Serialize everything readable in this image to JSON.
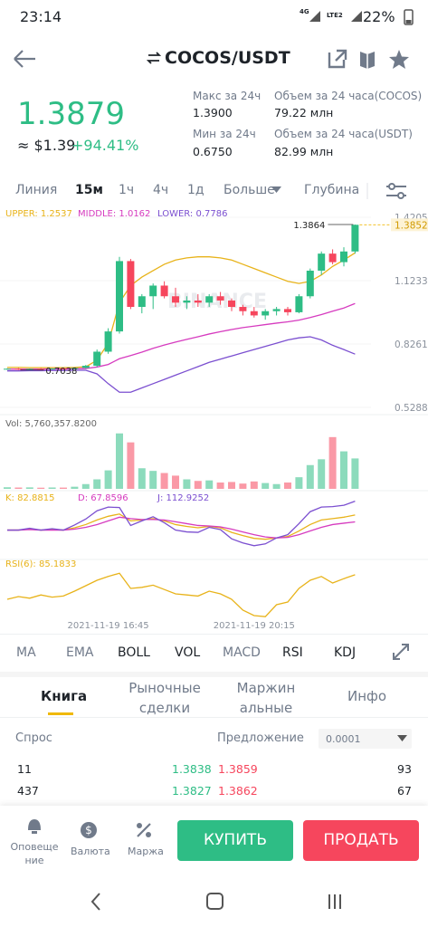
{
  "status": {
    "time": "23:14",
    "network": [
      "4G",
      "LTE2"
    ],
    "battery": "22%"
  },
  "header": {
    "pair": "COCOS/USDT"
  },
  "ticker": {
    "price": "1.3879",
    "usd": "≈ $1.39",
    "change": "+94.41%"
  },
  "stats": [
    {
      "label": "Макс за 24ч",
      "value": "1.3900"
    },
    {
      "label": "Объем за 24 часа(COCOS)",
      "value": "79.22 млн"
    },
    {
      "label": "Мин за 24ч",
      "value": "0.6750"
    },
    {
      "label": "Объем за 24 часа(USDT)",
      "value": "82.99 млн"
    }
  ],
  "intervals": [
    "Линия",
    "15м",
    "1ч",
    "4ч",
    "1д",
    "Больше",
    "Глубина"
  ],
  "watermark": "BINANCE",
  "chart_data": [
    {
      "type": "candlestick",
      "categories": [
        null,
        null,
        null,
        null,
        null,
        null,
        null,
        null,
        null,
        "2021-11-19 16:45",
        null,
        null,
        null,
        null,
        null,
        null,
        null,
        null,
        null,
        null,
        null,
        null,
        "2021-11-19 20:15",
        null,
        null,
        null,
        null,
        null,
        null,
        null,
        null,
        null
      ],
      "candles": {
        "open": [
          0.708,
          0.71,
          0.707,
          0.709,
          0.708,
          0.711,
          0.709,
          0.714,
          0.724,
          0.79,
          0.885,
          1.215,
          1.0,
          1.05,
          1.1,
          1.05,
          1.02,
          1.03,
          1.02,
          1.05,
          1.03,
          1.0,
          0.98,
          0.96,
          0.98,
          0.99,
          0.975,
          1.05,
          1.17,
          1.25,
          1.21,
          1.26
        ],
        "high": [
          0.712,
          0.713,
          0.711,
          0.713,
          0.712,
          0.714,
          0.716,
          0.728,
          0.8,
          0.9,
          1.235,
          1.225,
          1.06,
          1.11,
          1.12,
          1.09,
          1.05,
          1.06,
          1.06,
          1.07,
          1.04,
          1.01,
          1.0,
          0.99,
          1.0,
          1.0,
          1.06,
          1.18,
          1.26,
          1.27,
          1.28,
          1.3864
        ],
        "low": [
          0.705,
          0.7038,
          0.705,
          0.706,
          0.706,
          0.707,
          0.707,
          0.71,
          0.718,
          0.78,
          0.875,
          0.99,
          0.97,
          0.99,
          1.04,
          1.0,
          0.99,
          1.0,
          1.0,
          1.01,
          0.98,
          0.96,
          0.95,
          0.94,
          0.96,
          0.96,
          0.97,
          1.04,
          1.15,
          1.2,
          1.19,
          1.25
        ],
        "close": [
          0.71,
          0.707,
          0.709,
          0.708,
          0.711,
          0.709,
          0.714,
          0.724,
          0.79,
          0.885,
          1.215,
          1.0,
          1.05,
          1.1,
          1.05,
          1.02,
          1.03,
          1.02,
          1.05,
          1.03,
          1.0,
          0.98,
          0.96,
          0.98,
          0.99,
          0.975,
          1.05,
          1.17,
          1.25,
          1.21,
          1.26,
          1.3852
        ]
      },
      "up_color": "#2ebd85",
      "down_color": "#f6465d",
      "series": [
        {
          "name": "UPPER: 1.2537",
          "color": "#e8b31a",
          "values": [
            0.716,
            0.716,
            0.715,
            0.715,
            0.715,
            0.715,
            0.716,
            0.719,
            0.75,
            0.83,
            1.02,
            1.1,
            1.14,
            1.17,
            1.2,
            1.22,
            1.23,
            1.235,
            1.235,
            1.23,
            1.22,
            1.2,
            1.18,
            1.16,
            1.14,
            1.12,
            1.11,
            1.12,
            1.15,
            1.19,
            1.22,
            1.2537
          ]
        },
        {
          "name": "MIDDLE: 1.0162",
          "color": "#d63bbf",
          "values": [
            0.708,
            0.708,
            0.708,
            0.708,
            0.709,
            0.709,
            0.71,
            0.711,
            0.718,
            0.73,
            0.757,
            0.772,
            0.788,
            0.806,
            0.821,
            0.835,
            0.848,
            0.86,
            0.873,
            0.884,
            0.894,
            0.903,
            0.91,
            0.917,
            0.924,
            0.93,
            0.938,
            0.95,
            0.964,
            0.98,
            0.995,
            1.0162
          ]
        },
        {
          "name": "LOWER: 0.7786",
          "color": "#7b4fd0",
          "values": [
            0.7,
            0.7,
            0.701,
            0.701,
            0.702,
            0.702,
            0.703,
            0.703,
            0.686,
            0.64,
            0.6,
            0.6,
            0.62,
            0.64,
            0.66,
            0.68,
            0.7,
            0.72,
            0.74,
            0.755,
            0.77,
            0.785,
            0.8,
            0.815,
            0.83,
            0.845,
            0.855,
            0.86,
            0.845,
            0.82,
            0.8,
            0.7786
          ]
        }
      ],
      "ylim": [
        0.4948,
        1.4545
      ],
      "yticks": [
        1.4205,
        1.1233,
        0.8261,
        0.5288
      ],
      "grid": true
    },
    {
      "type": "bar",
      "series": [
        {
          "name": "Vol: 5,760,357.8200",
          "color": "#666666",
          "values": [
            300000,
            250000,
            280000,
            220000,
            260000,
            240000,
            400000,
            900000,
            1800000,
            3500000,
            10500000,
            8800000,
            3900000,
            3400000,
            3000000,
            2500000,
            1800000,
            1500000,
            1600000,
            1200000,
            1300000,
            1000000,
            1400000,
            1100000,
            900000,
            1200000,
            2200000,
            4500000,
            5600000,
            9800000,
            7100000,
            5760357.82
          ]
        }
      ],
      "ylim": [
        0,
        12000000
      ]
    },
    {
      "type": "line",
      "series": [
        {
          "name": "K: 82.8815",
          "color": "#e8b31a",
          "values": [
            50,
            50,
            52,
            50,
            51,
            50,
            55,
            62,
            72,
            80,
            85,
            70,
            72,
            75,
            70,
            62,
            58,
            55,
            58,
            55,
            45,
            38,
            32,
            30,
            33,
            36,
            48,
            62,
            72,
            75,
            78,
            82.8815
          ]
        },
        {
          "name": "D: 67.8596",
          "color": "#d63bbf",
          "values": [
            50,
            50,
            51,
            50,
            50,
            50,
            52,
            56,
            62,
            70,
            78,
            75,
            73,
            73,
            72,
            68,
            64,
            60,
            59,
            57,
            52,
            46,
            40,
            35,
            33,
            34,
            40,
            48,
            56,
            62,
            65,
            67.8596
          ]
        },
        {
          "name": "J: 112.9252",
          "color": "#7b4fd0",
          "values": [
            50,
            50,
            54,
            50,
            53,
            50,
            61,
            74,
            92,
            100,
            99,
            60,
            70,
            79,
            66,
            50,
            46,
            45,
            56,
            51,
            31,
            22,
            16,
            20,
            33,
            40,
            64,
            90,
            100,
            101,
            104,
            112.9252
          ]
        }
      ],
      "ylim": [
        -10,
        120
      ]
    },
    {
      "type": "line",
      "series": [
        {
          "name": "RSI(6): 85.1833",
          "color": "#e8b31a",
          "values": [
            40,
            45,
            42,
            48,
            44,
            46,
            55,
            65,
            75,
            82,
            88,
            60,
            62,
            66,
            58,
            50,
            48,
            46,
            55,
            50,
            40,
            20,
            10,
            8,
            30,
            35,
            60,
            75,
            82,
            70,
            78,
            85.1833
          ]
        }
      ],
      "ylim": [
        0,
        100
      ]
    }
  ],
  "indicators": [
    "MA",
    "EMA",
    "BOLL",
    "VOL",
    "MACD",
    "RSI",
    "KDJ"
  ],
  "book_tabs": [
    "Книга",
    "Рыночные сделки",
    "Маржинальные",
    "Инфо"
  ],
  "order_book": {
    "bid_label": "Спрос",
    "ask_label": "Предложение",
    "step": "0.0001",
    "rows": [
      [
        "11",
        "1.3838",
        "1.3859",
        "93"
      ],
      [
        "437",
        "1.3827",
        "1.3862",
        "67"
      ]
    ]
  },
  "actions": {
    "alerts": "Оповещение",
    "currency": "Валюта",
    "margin": "Маржа",
    "buy": "КУПИТЬ",
    "sell": "ПРОДАТЬ"
  }
}
